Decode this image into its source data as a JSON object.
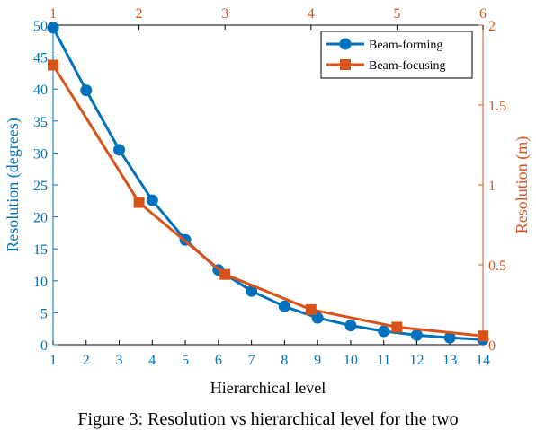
{
  "colors": {
    "primary": "#0072BD",
    "secondary": "#D95319",
    "axis": "#000000"
  },
  "chart_data": {
    "type": "line",
    "xlabel": "Hierarchical level",
    "ylabel_left": "Resolution (degrees)",
    "ylabel_right": "Resolution (m)",
    "x_bottom": {
      "lim": [
        1,
        14
      ],
      "ticks": [
        1,
        2,
        3,
        4,
        5,
        6,
        7,
        8,
        9,
        10,
        11,
        12,
        13,
        14
      ]
    },
    "x_top": {
      "lim": [
        1,
        6
      ],
      "ticks": [
        1,
        2,
        3,
        4,
        5,
        6
      ]
    },
    "y_left": {
      "lim": [
        0,
        50
      ],
      "ticks": [
        "0",
        "5",
        "10",
        "15",
        "20",
        "25",
        "30",
        "35",
        "40",
        "45",
        "50"
      ]
    },
    "y_right": {
      "lim": [
        0,
        2
      ],
      "ticks": [
        "0",
        "0.5",
        "1",
        "1.5",
        "2"
      ]
    },
    "legend_position": "top-right",
    "grid": false,
    "series": [
      {
        "name": "Beam-forming",
        "color": "#0072BD",
        "marker": "circle",
        "x_axis": "bottom",
        "y_axis": "left",
        "x": [
          1,
          2,
          3,
          4,
          5,
          6,
          7,
          8,
          9,
          10,
          11,
          12,
          13,
          14
        ],
        "y": [
          49.6,
          39.8,
          30.5,
          22.6,
          16.4,
          11.7,
          8.4,
          6.0,
          4.2,
          3.0,
          2.1,
          1.5,
          1.1,
          0.8
        ]
      },
      {
        "name": "Beam-focusing",
        "color": "#D95319",
        "marker": "square",
        "x_axis": "top",
        "y_axis": "right",
        "x": [
          1,
          2,
          3,
          4,
          5,
          6
        ],
        "y": [
          1.75,
          0.89,
          0.44,
          0.22,
          0.11,
          0.055
        ]
      }
    ]
  },
  "caption": "Figure 3: Resolution vs hierarchical level for the two"
}
